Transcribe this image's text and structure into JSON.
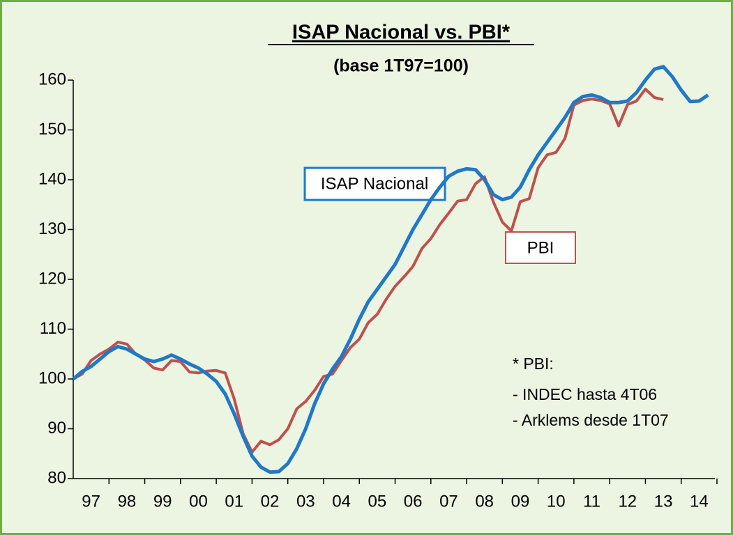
{
  "chart_data": {
    "type": "line",
    "title": "ISAP Nacional vs. PBI*",
    "subtitle": "(base 1T97=100)",
    "annotations": [
      "ISAP Nacional",
      "PBI",
      "* PBI:",
      "- INDEC hasta 4T06",
      "- Arklems desde 1T07"
    ],
    "x": [
      1997,
      1997.25,
      1997.5,
      1997.75,
      1998,
      1998.25,
      1998.5,
      1998.75,
      1999,
      1999.25,
      1999.5,
      1999.75,
      2000,
      2000.25,
      2000.5,
      2000.75,
      2001,
      2001.25,
      2001.5,
      2001.75,
      2002,
      2002.25,
      2002.5,
      2002.75,
      2003,
      2003.25,
      2003.5,
      2003.75,
      2004,
      2004.25,
      2004.5,
      2004.75,
      2005,
      2005.25,
      2005.5,
      2005.75,
      2006,
      2006.25,
      2006.5,
      2006.75,
      2007,
      2007.25,
      2007.5,
      2007.75,
      2008,
      2008.25,
      2008.5,
      2008.75,
      2009,
      2009.25,
      2009.5,
      2009.75,
      2010,
      2010.25,
      2010.5,
      2010.75,
      2011,
      2011.25,
      2011.5,
      2011.75,
      2012,
      2012.25,
      2012.5,
      2012.75,
      2013,
      2013.25,
      2013.5,
      2013.75,
      2014,
      2014.25,
      2014.5,
      2014.75
    ],
    "series": [
      {
        "name": "ISAP Nacional",
        "color": "#1f78c8",
        "values": [
          100,
          101.5,
          102.5,
          104,
          105.5,
          106.5,
          106,
          105,
          104,
          103.5,
          104,
          104.8,
          104,
          103,
          102.2,
          101,
          99.5,
          97,
          93,
          88.5,
          84.5,
          82.3,
          81.3,
          81.4,
          83,
          86,
          90,
          95,
          99,
          102,
          104.5,
          108,
          112,
          115.5,
          118,
          120.5,
          123,
          126.5,
          130,
          133,
          136,
          138.5,
          140.7,
          141.7,
          142.2,
          142,
          140,
          137,
          136,
          136.5,
          138.5,
          142,
          145,
          147.5,
          150,
          152.5,
          155.5,
          156.7,
          157,
          156.5,
          155.5,
          155.5,
          155.8,
          157.5,
          160,
          162.2,
          162.7,
          160.7,
          158,
          155.7,
          155.8,
          157
        ]
      },
      {
        "name": "PBI",
        "color": "#c0504d",
        "values": [
          100,
          101,
          103.7,
          105,
          106,
          107.4,
          107,
          105,
          103.8,
          102.2,
          101.8,
          103.7,
          103.5,
          101.4,
          101.2,
          101.6,
          101.7,
          101.2,
          96,
          89,
          85.3,
          87.5,
          86.8,
          87.8,
          90,
          94,
          95.5,
          97.7,
          100.5,
          101,
          103.7,
          106.3,
          108,
          111.3,
          113,
          116,
          118.6,
          120.5,
          122.6,
          126.2,
          128.2,
          131,
          133.3,
          135.7,
          136,
          139.2,
          140.6,
          135.5,
          131.5,
          129.7,
          135.6,
          136.2,
          142.4,
          145,
          145.5,
          148.3,
          155,
          155.9,
          156.2,
          155.9,
          155.2,
          150.8,
          155.1,
          155.8,
          158.2,
          156.5,
          156.1,
          null,
          null,
          null,
          null,
          null
        ]
      }
    ],
    "xlim": [
      1997,
      2015
    ],
    "xticks": [
      {
        "value": 1997.5,
        "label": "97"
      },
      {
        "value": 1998.5,
        "label": "98"
      },
      {
        "value": 1999.5,
        "label": "99"
      },
      {
        "value": 2000.5,
        "label": "00"
      },
      {
        "value": 2001.5,
        "label": "01"
      },
      {
        "value": 2002.5,
        "label": "02"
      },
      {
        "value": 2003.5,
        "label": "03"
      },
      {
        "value": 2004.5,
        "label": "04"
      },
      {
        "value": 2005.5,
        "label": "05"
      },
      {
        "value": 2006.5,
        "label": "06"
      },
      {
        "value": 2007.5,
        "label": "07"
      },
      {
        "value": 2008.5,
        "label": "08"
      },
      {
        "value": 2009.5,
        "label": "09"
      },
      {
        "value": 2010.5,
        "label": "10"
      },
      {
        "value": 2011.5,
        "label": "11"
      },
      {
        "value": 2012.5,
        "label": "12"
      },
      {
        "value": 2013.5,
        "label": "13"
      },
      {
        "value": 2014.5,
        "label": "14"
      }
    ],
    "ylim": [
      80,
      160
    ],
    "yticks": [
      80,
      90,
      100,
      110,
      120,
      130,
      140,
      150,
      160
    ],
    "grid": false
  }
}
